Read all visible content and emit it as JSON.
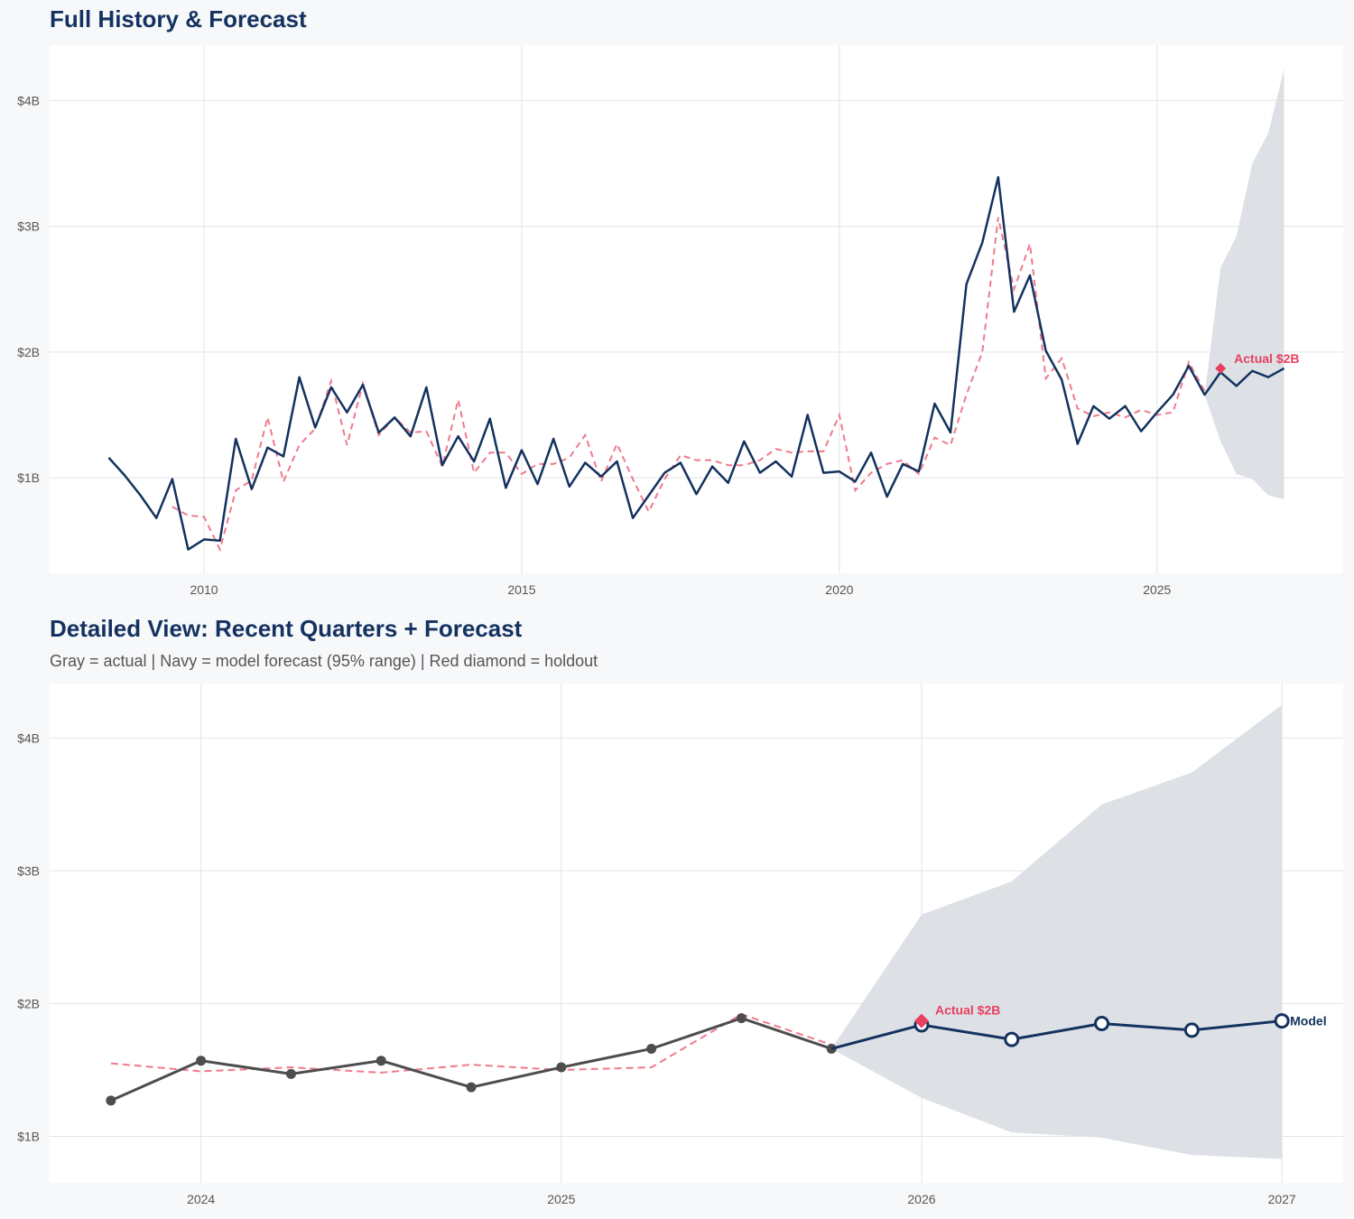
{
  "colors": {
    "navy": "#14325f",
    "red": "#e8405f",
    "red_dashed": "#ef7a8c",
    "gray": "#4d4d4d",
    "band": "#dbdfe5",
    "grid": "#e3e3e3",
    "panel": "#ffffff",
    "background": "#f7f8fa"
  },
  "chart_data": [
    {
      "type": "line",
      "title": "Full History & Forecast",
      "xlim": [
        2007.57,
        2027.93
      ],
      "ylim": [
        0.24,
        4.44
      ],
      "x_ticks": [
        2010,
        2015,
        2020,
        2025
      ],
      "x_tick_labels": [
        "2010",
        "2015",
        "2020",
        "2025"
      ],
      "y_ticks": [
        1,
        2,
        3,
        4
      ],
      "y_tick_labels": [
        "$1B",
        "$2B",
        "$3B",
        "$4B"
      ],
      "grid": true,
      "x_start": 2008.5,
      "x_step": 0.25,
      "series": [
        {
          "role": "actual",
          "style": "navy solid",
          "values": [
            1.16,
            1.02,
            0.86,
            0.68,
            0.99,
            0.43,
            0.51,
            0.5,
            1.31,
            0.91,
            1.24,
            1.17,
            1.8,
            1.4,
            1.72,
            1.52,
            1.74,
            1.36,
            1.48,
            1.33,
            1.72,
            1.1,
            1.33,
            1.13,
            1.47,
            0.92,
            1.22,
            0.95,
            1.31,
            0.93,
            1.12,
            1.01,
            1.13,
            0.68,
            0.86,
            1.04,
            1.12,
            0.87,
            1.09,
            0.96,
            1.29,
            1.04,
            1.13,
            1.01,
            1.5,
            1.04,
            1.05,
            0.97,
            1.2,
            0.85,
            1.11,
            1.05,
            1.59,
            1.36,
            2.54,
            2.87,
            3.39,
            2.32,
            2.61,
            2.01,
            1.78,
            1.27,
            1.57,
            1.47,
            1.57,
            1.37,
            1.52,
            1.66,
            1.89,
            1.66
          ]
        },
        {
          "role": "fitted",
          "style": "red dashed",
          "start_index": 4,
          "values": [
            0.77,
            0.7,
            0.69,
            0.43,
            0.9,
            0.98,
            1.48,
            0.97,
            1.26,
            1.39,
            1.77,
            1.26,
            1.75,
            1.34,
            1.48,
            1.36,
            1.37,
            1.09,
            1.62,
            1.04,
            1.2,
            1.2,
            1.03,
            1.11,
            1.11,
            1.16,
            1.34,
            0.97,
            1.27,
            0.99,
            0.73,
            0.99,
            1.18,
            1.14,
            1.14,
            1.1,
            1.1,
            1.14,
            1.23,
            1.2,
            1.21,
            1.21,
            1.5,
            0.9,
            1.04,
            1.11,
            1.14,
            1.03,
            1.32,
            1.26,
            1.66,
            2.0,
            3.07,
            2.5,
            2.86,
            1.79,
            1.95,
            1.55,
            1.49,
            1.52,
            1.48,
            1.54,
            1.5,
            1.52,
            1.92,
            1.69
          ]
        }
      ],
      "forecast": {
        "x": [
          2025.75,
          2026.0,
          2026.25,
          2026.5,
          2026.75,
          2027.0
        ],
        "values": [
          1.66,
          1.84,
          1.73,
          1.85,
          1.8,
          1.87
        ],
        "upper": [
          1.66,
          2.67,
          2.92,
          3.5,
          3.74,
          4.25
        ],
        "lower": [
          1.66,
          1.29,
          1.03,
          0.99,
          0.86,
          0.83
        ]
      },
      "holdout": {
        "x": 2026.0,
        "value": 1.87,
        "label": "Actual $2B"
      }
    },
    {
      "type": "line",
      "title": "Detailed View: Recent Quarters + Forecast",
      "subtitle": "Gray = actual  |  Navy = model forecast (95% range)  |  Red diamond = holdout",
      "xlim": [
        2023.58,
        2027.17
      ],
      "ylim": [
        0.65,
        4.41
      ],
      "x_ticks": [
        2024,
        2025,
        2026,
        2027
      ],
      "x_tick_labels": [
        "2024",
        "2025",
        "2026",
        "2027"
      ],
      "y_ticks": [
        1,
        2,
        3,
        4
      ],
      "y_tick_labels": [
        "$1B",
        "$2B",
        "$3B",
        "$4B"
      ],
      "grid": true,
      "actual": {
        "x": [
          2023.75,
          2024.0,
          2024.25,
          2024.5,
          2024.75,
          2025.0,
          2025.25,
          2025.5,
          2025.75
        ],
        "values": [
          1.27,
          1.57,
          1.47,
          1.57,
          1.37,
          1.52,
          1.66,
          1.89,
          1.66
        ]
      },
      "fitted": {
        "x": [
          2023.75,
          2024.0,
          2024.25,
          2024.5,
          2024.75,
          2025.0,
          2025.25,
          2025.5,
          2025.75
        ],
        "values": [
          1.55,
          1.49,
          1.52,
          1.48,
          1.54,
          1.5,
          1.52,
          1.92,
          1.69
        ]
      },
      "forecast": {
        "x": [
          2025.75,
          2026.0,
          2026.25,
          2026.5,
          2026.75,
          2027.0
        ],
        "values": [
          1.66,
          1.84,
          1.73,
          1.85,
          1.8,
          1.87
        ],
        "upper": [
          1.66,
          2.67,
          2.92,
          3.5,
          3.74,
          4.25
        ],
        "lower": [
          1.66,
          1.29,
          1.03,
          0.99,
          0.86,
          0.83
        ],
        "label": "Model"
      },
      "holdout": {
        "x": 2026.0,
        "value": 1.87,
        "label": "Actual $2B"
      }
    }
  ]
}
